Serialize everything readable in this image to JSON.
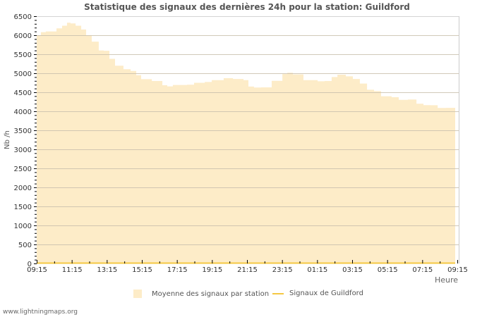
{
  "title": "Statistique des signaux des dernières 24h pour la station: Guildford",
  "y_axis_label": "Nb /h",
  "x_axis_label": "Heure",
  "legend": [
    {
      "label": "Moyenne des signaux par station",
      "type": "area",
      "color": "#fdecc8"
    },
    {
      "label": "Signaux de Guildford",
      "type": "line",
      "color": "#f5c842"
    }
  ],
  "footer": "www.lightningmaps.org",
  "chart_data": {
    "type": "area",
    "title": "Statistique des signaux des dernières 24h pour la station: Guildford",
    "xlabel": "Heure",
    "ylabel": "Nb /h",
    "ylim": [
      0,
      6500
    ],
    "yticks": [
      0,
      500,
      1000,
      1500,
      2000,
      2500,
      3000,
      3500,
      4000,
      4500,
      5000,
      5500,
      6000,
      6500
    ],
    "xticks": [
      "09:15",
      "11:15",
      "13:15",
      "15:15",
      "17:15",
      "19:15",
      "21:15",
      "23:15",
      "01:15",
      "03:15",
      "05:15",
      "07:15",
      "09:15"
    ],
    "grid": true,
    "legend_position": "bottom",
    "series": [
      {
        "name": "Moyenne des signaux par station",
        "type": "area",
        "color": "#fdecc8",
        "hours_from_start": [
          0,
          0.24,
          0.52,
          0.81,
          1.13,
          1.45,
          1.73,
          1.93,
          2.22,
          2.54,
          2.82,
          3.14,
          3.54,
          3.83,
          4.15,
          4.47,
          4.95,
          5.36,
          5.68,
          5.96,
          6.57,
          7.17,
          7.45,
          7.77,
          8.58,
          8.98,
          9.59,
          9.99,
          10.67,
          11.2,
          11.8,
          12.08,
          12.4,
          12.81,
          13.41,
          14.02,
          14.3,
          14.62,
          15.22,
          16.03,
          16.43,
          16.83,
          17.16,
          17.64,
          18.04,
          18.44,
          18.85,
          19.25,
          19.65,
          20.25,
          20.66,
          21.18,
          21.67,
          22.07,
          22.47,
          22.88,
          23.36,
          23.88
        ],
        "values": [
          6000,
          6080,
          6100,
          6100,
          6180,
          6250,
          6328,
          6310,
          6250,
          6150,
          6000,
          5830,
          5600,
          5590,
          5380,
          5200,
          5106,
          5060,
          4950,
          4846,
          4796,
          4685,
          4654,
          4691,
          4700,
          4750,
          4770,
          4820,
          4870,
          4850,
          4820,
          4650,
          4624,
          4630,
          4800,
          4980,
          5013,
          4970,
          4820,
          4790,
          4796,
          4900,
          4963,
          4920,
          4850,
          4730,
          4568,
          4530,
          4395,
          4370,
          4302,
          4310,
          4200,
          4161,
          4160,
          4087,
          4090,
          4105
        ]
      },
      {
        "name": "Signaux de Guildford",
        "type": "line",
        "color": "#f5c842",
        "hours_from_start": [
          0,
          24
        ],
        "values": [
          0,
          0
        ]
      }
    ]
  }
}
